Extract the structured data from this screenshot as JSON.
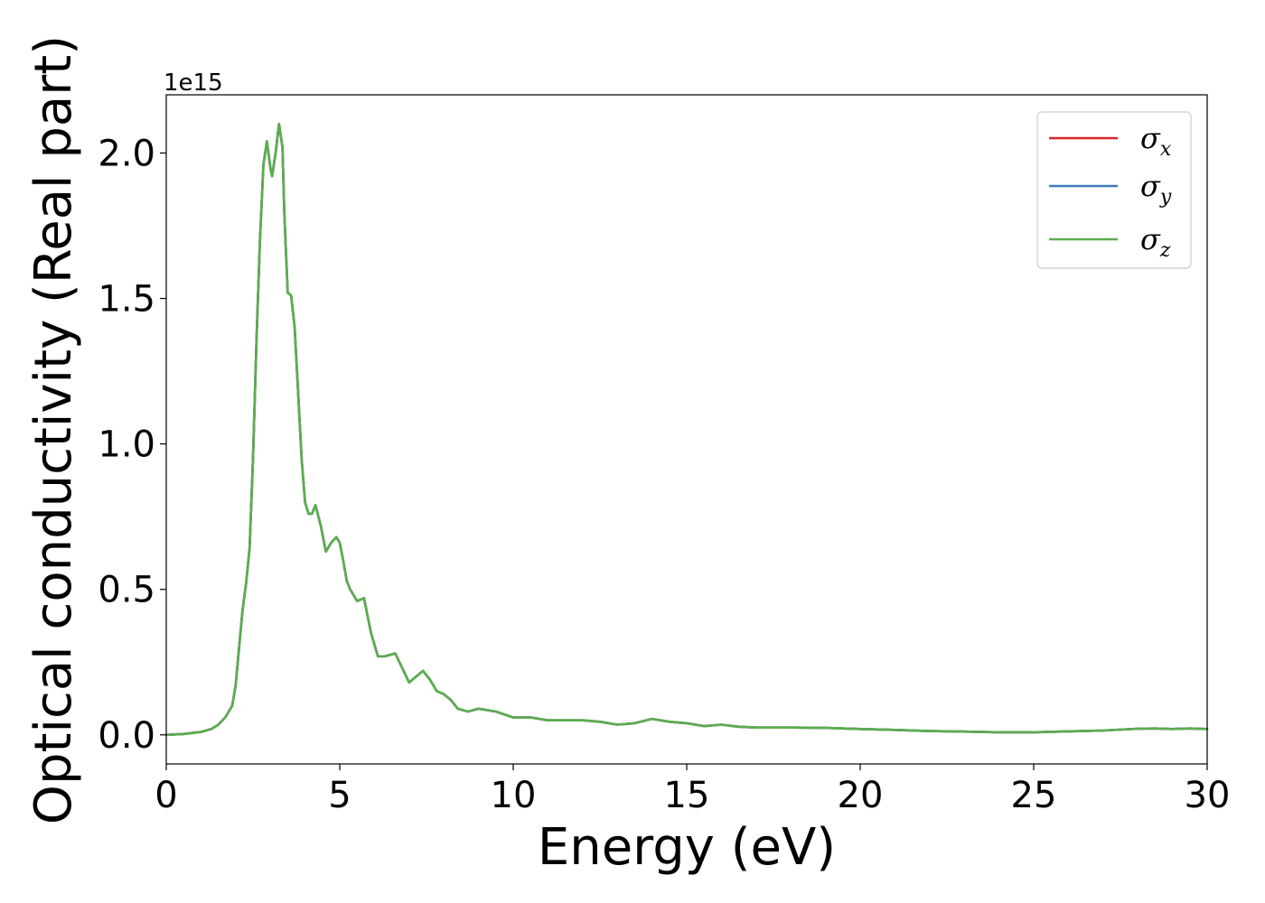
{
  "chart_data": {
    "type": "line",
    "title": "",
    "xlabel": "Energy (eV)",
    "ylabel": "Optical conductivity (Real part)",
    "y_offset_label": "1e15",
    "xlim": [
      0,
      30
    ],
    "ylim": [
      -0.1,
      2.2
    ],
    "xticks": [
      0,
      5,
      10,
      15,
      20,
      25,
      30
    ],
    "xtick_labels": [
      "0",
      "5",
      "10",
      "15",
      "20",
      "25",
      "30"
    ],
    "yticks": [
      0.0,
      0.5,
      1.0,
      1.5,
      2.0
    ],
    "ytick_labels": [
      "0.0",
      "0.5",
      "1.0",
      "1.5",
      "2.0"
    ],
    "grid": false,
    "legend_position": "top-right",
    "x": [
      0,
      0.5,
      1.0,
      1.3,
      1.5,
      1.7,
      1.9,
      2.0,
      2.1,
      2.2,
      2.3,
      2.4,
      2.5,
      2.6,
      2.7,
      2.8,
      2.9,
      3.0,
      3.05,
      3.15,
      3.25,
      3.35,
      3.4,
      3.5,
      3.6,
      3.7,
      3.8,
      3.9,
      4.0,
      4.1,
      4.2,
      4.3,
      4.45,
      4.6,
      4.75,
      4.9,
      5.0,
      5.1,
      5.2,
      5.3,
      5.5,
      5.7,
      5.8,
      5.9,
      6.1,
      6.3,
      6.6,
      6.8,
      7.0,
      7.2,
      7.4,
      7.6,
      7.8,
      8.0,
      8.2,
      8.4,
      8.7,
      9.0,
      9.5,
      10.0,
      10.5,
      11.0,
      11.5,
      12.0,
      12.5,
      13.0,
      13.5,
      14.0,
      14.5,
      15.0,
      15.5,
      16.0,
      16.5,
      17.0,
      18.0,
      19.0,
      20.0,
      21.0,
      22.0,
      23.0,
      24.0,
      25.0,
      26.0,
      27.0,
      27.5,
      28.0,
      28.5,
      29.0,
      29.5,
      30.0
    ],
    "series": [
      {
        "name": "σx",
        "color": "#d62728",
        "values": [
          0.0,
          0.003,
          0.01,
          0.02,
          0.035,
          0.06,
          0.1,
          0.17,
          0.3,
          0.43,
          0.52,
          0.64,
          0.95,
          1.35,
          1.7,
          1.96,
          2.04,
          1.95,
          1.92,
          2.0,
          2.1,
          2.02,
          1.8,
          1.52,
          1.51,
          1.4,
          1.18,
          0.95,
          0.8,
          0.76,
          0.76,
          0.79,
          0.72,
          0.63,
          0.66,
          0.68,
          0.66,
          0.6,
          0.53,
          0.5,
          0.46,
          0.47,
          0.41,
          0.35,
          0.27,
          0.27,
          0.28,
          0.23,
          0.18,
          0.2,
          0.22,
          0.19,
          0.15,
          0.14,
          0.12,
          0.09,
          0.08,
          0.09,
          0.08,
          0.06,
          0.06,
          0.05,
          0.05,
          0.05,
          0.045,
          0.035,
          0.04,
          0.055,
          0.045,
          0.04,
          0.03,
          0.035,
          0.028,
          0.025,
          0.025,
          0.024,
          0.02,
          0.017,
          0.013,
          0.011,
          0.009,
          0.009,
          0.012,
          0.015,
          0.018,
          0.021,
          0.022,
          0.02,
          0.022,
          0.02
        ]
      },
      {
        "name": "σy",
        "color": "#3b7bbf",
        "values": [
          0.0,
          0.003,
          0.01,
          0.02,
          0.035,
          0.06,
          0.1,
          0.17,
          0.3,
          0.43,
          0.52,
          0.64,
          0.95,
          1.35,
          1.7,
          1.96,
          2.04,
          1.95,
          1.92,
          2.0,
          2.1,
          2.02,
          1.8,
          1.52,
          1.51,
          1.4,
          1.18,
          0.95,
          0.8,
          0.76,
          0.76,
          0.79,
          0.72,
          0.63,
          0.66,
          0.68,
          0.66,
          0.6,
          0.53,
          0.5,
          0.46,
          0.47,
          0.41,
          0.35,
          0.27,
          0.27,
          0.28,
          0.23,
          0.18,
          0.2,
          0.22,
          0.19,
          0.15,
          0.14,
          0.12,
          0.09,
          0.08,
          0.09,
          0.08,
          0.06,
          0.06,
          0.05,
          0.05,
          0.05,
          0.045,
          0.035,
          0.04,
          0.055,
          0.045,
          0.04,
          0.03,
          0.035,
          0.028,
          0.025,
          0.025,
          0.024,
          0.02,
          0.017,
          0.013,
          0.011,
          0.009,
          0.009,
          0.012,
          0.015,
          0.018,
          0.021,
          0.022,
          0.02,
          0.022,
          0.02
        ]
      },
      {
        "name": "σz",
        "color": "#5aae4c",
        "values": [
          0.0,
          0.003,
          0.01,
          0.02,
          0.035,
          0.06,
          0.1,
          0.17,
          0.3,
          0.43,
          0.52,
          0.64,
          0.95,
          1.35,
          1.7,
          1.96,
          2.04,
          1.95,
          1.92,
          2.0,
          2.1,
          2.02,
          1.8,
          1.52,
          1.51,
          1.4,
          1.18,
          0.95,
          0.8,
          0.76,
          0.76,
          0.79,
          0.72,
          0.63,
          0.66,
          0.68,
          0.66,
          0.6,
          0.53,
          0.5,
          0.46,
          0.47,
          0.41,
          0.35,
          0.27,
          0.27,
          0.28,
          0.23,
          0.18,
          0.2,
          0.22,
          0.19,
          0.15,
          0.14,
          0.12,
          0.09,
          0.08,
          0.09,
          0.08,
          0.06,
          0.06,
          0.05,
          0.05,
          0.05,
          0.045,
          0.035,
          0.04,
          0.055,
          0.045,
          0.04,
          0.03,
          0.035,
          0.028,
          0.025,
          0.025,
          0.024,
          0.02,
          0.017,
          0.013,
          0.011,
          0.009,
          0.009,
          0.012,
          0.015,
          0.018,
          0.021,
          0.022,
          0.02,
          0.022,
          0.02
        ]
      }
    ],
    "legend": [
      {
        "symbol": "σ",
        "sub": "x",
        "color": "#d62728"
      },
      {
        "symbol": "σ",
        "sub": "y",
        "color": "#3b7bbf"
      },
      {
        "symbol": "σ",
        "sub": "z",
        "color": "#5aae4c"
      }
    ]
  }
}
